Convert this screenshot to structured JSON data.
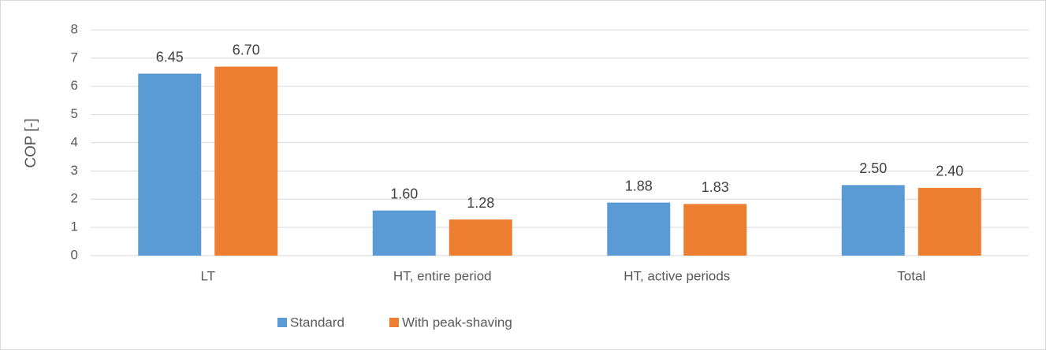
{
  "chart_data": {
    "type": "bar",
    "y_label": "COP [-]",
    "categories": [
      "LT",
      "HT, entire period",
      "HT, active periods",
      "Total"
    ],
    "series": [
      {
        "name": "Standard",
        "color": "#5b9bd5",
        "values": [
          6.45,
          1.6,
          1.88,
          2.5
        ],
        "value_labels": [
          "6.45",
          "1.60",
          "1.88",
          "2.50"
        ]
      },
      {
        "name": "With peak-shaving",
        "color": "#ed7d31",
        "values": [
          6.7,
          1.28,
          1.83,
          2.4
        ],
        "value_labels": [
          "6.70",
          "1.28",
          "1.83",
          "2.40"
        ]
      }
    ],
    "ylim": [
      0,
      8
    ],
    "yticks": [
      0,
      1,
      2,
      3,
      4,
      5,
      6,
      7,
      8
    ],
    "grid": true,
    "legend": "bottom"
  }
}
